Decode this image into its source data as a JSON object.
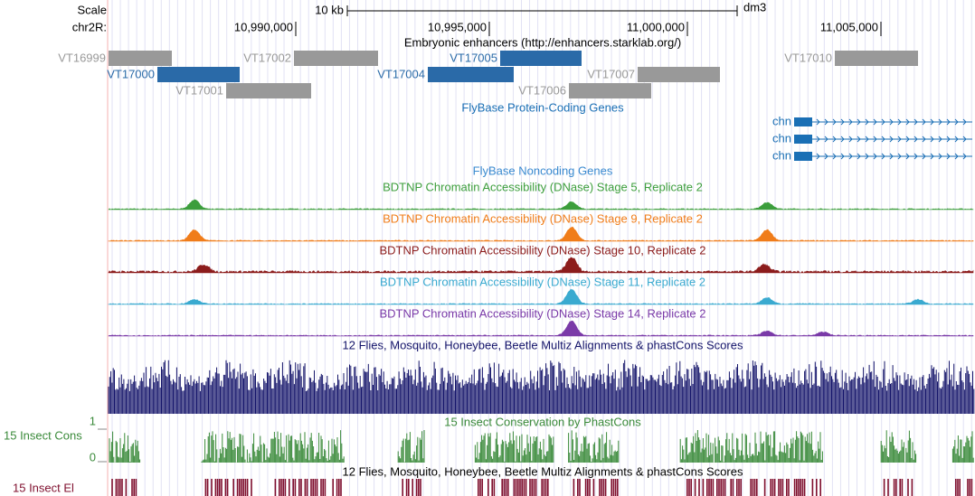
{
  "scale": {
    "label": "Scale",
    "span": "10 kb",
    "assembly": "dm3"
  },
  "position": {
    "chrom": "chr2R:",
    "ticks": [
      "10,990,000",
      "10,995,000",
      "11,000,000",
      "11,005,000"
    ]
  },
  "enhancers": {
    "title": "Embryonic enhancers (http://enhancers.starklab.org/)",
    "items": [
      "VT16999",
      "VT17002",
      "VT17005",
      "VT17010",
      "VT17000",
      "VT17004",
      "VT17007",
      "VT17001",
      "VT17006"
    ]
  },
  "genes": {
    "title": "FlyBase Protein-Coding Genes",
    "items": [
      "chn",
      "chn",
      "chn"
    ]
  },
  "noncoding": {
    "title": "FlyBase Noncoding Genes"
  },
  "dnase": [
    {
      "title": "BDTNP Chromatin Accessibility (DNase) Stage 5, Replicate 2",
      "color": "#3c9e3c"
    },
    {
      "title": "BDTNP Chromatin Accessibility (DNase) Stage 9, Replicate 2",
      "color": "#f07d1a"
    },
    {
      "title": "BDTNP Chromatin Accessibility (DNase) Stage 10, Replicate 2",
      "color": "#8c1c1c"
    },
    {
      "title": "BDTNP Chromatin Accessibility (DNase) Stage 11, Replicate 2",
      "color": "#3aaad0"
    },
    {
      "title": "BDTNP Chromatin Accessibility (DNase) Stage 14, Replicate 2",
      "color": "#7a3aa8"
    }
  ],
  "multiz": {
    "title": "12 Flies, Mosquito, Honeybee, Beetle Multiz Alignments & phastCons Scores"
  },
  "phastcons": {
    "title": "15 Insect Conservation by PhastCons",
    "label": "15 Insect Cons",
    "max": 1,
    "min": 0
  },
  "elements": {
    "title": "12 Flies, Mosquito, Honeybee, Beetle Multiz Alignments & phastCons Scores",
    "label": "15 Insect El"
  }
}
